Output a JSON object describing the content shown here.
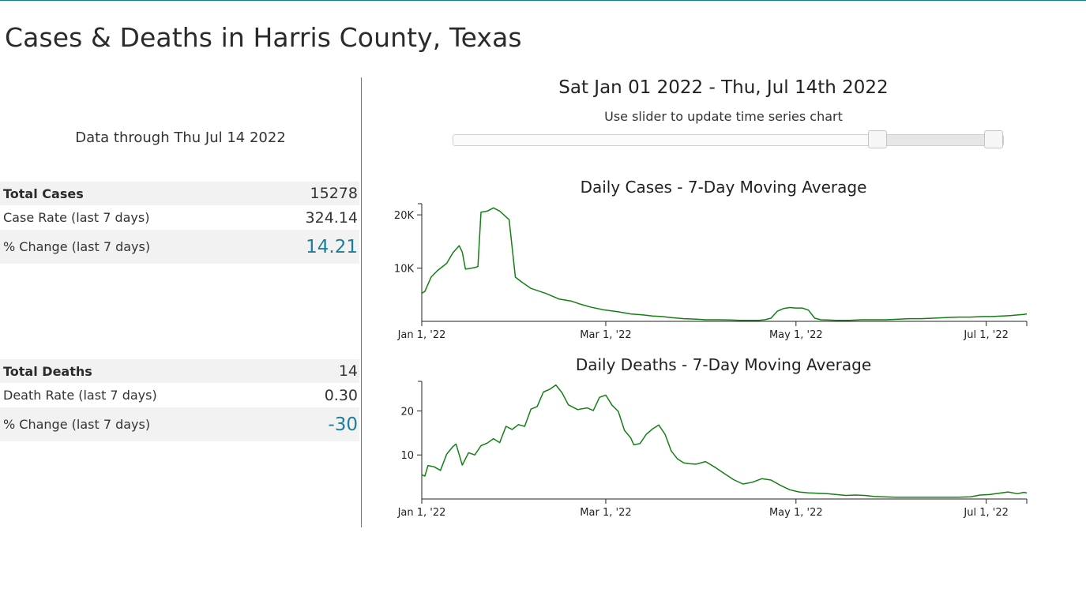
{
  "page": {
    "title": "Cases & Deaths in Harris County, Texas",
    "data_through": "Data through Thu Jul 14 2022"
  },
  "cases_stats": [
    {
      "label": "Total Cases",
      "value": "15278",
      "bold": true,
      "accent": false
    },
    {
      "label": "Case Rate (last 7 days)",
      "value": "324.14",
      "bold": false,
      "accent": false
    },
    {
      "label": "% Change (last 7 days)",
      "value": "14.21",
      "bold": false,
      "accent": true
    }
  ],
  "deaths_stats": [
    {
      "label": "Total Deaths",
      "value": "14",
      "bold": true,
      "accent": false
    },
    {
      "label": "Death Rate (last 7 days)",
      "value": "0.30",
      "bold": false,
      "accent": false
    },
    {
      "label": "% Change (last 7 days)",
      "value": "-30",
      "bold": false,
      "accent": true
    }
  ],
  "slider": {
    "range_title": "Sat Jan 01 2022 - Thu, Jul 14th 2022",
    "hint": "Use slider to update time series chart",
    "min_date": "2022-01-01",
    "max_date": "2022-07-14"
  },
  "colors": {
    "accent": "#1a7f9a",
    "line": "#138013",
    "divider": "#3b88b0"
  },
  "chart_data": [
    {
      "type": "line",
      "title": "Daily Cases - 7-Day Moving Average",
      "x_range": [
        "2022-01-01",
        "2022-07-14"
      ],
      "ylim": [
        0,
        21500
      ],
      "yticks": [
        {
          "value": 10000,
          "label": "10K"
        },
        {
          "value": 20000,
          "label": "20K"
        }
      ],
      "xticks": [
        {
          "date": "2022-01-01",
          "label": "Jan 1, '22"
        },
        {
          "date": "2022-03-01",
          "label": "Mar 1, '22"
        },
        {
          "date": "2022-05-01",
          "label": "May 1, '22"
        },
        {
          "date": "2022-07-01",
          "label": "Jul 1, '22"
        }
      ],
      "series": [
        {
          "points": [
            [
              "2022-01-01",
              5300
            ],
            [
              "2022-01-02",
              5600
            ],
            [
              "2022-01-04",
              8300
            ],
            [
              "2022-01-06",
              9500
            ],
            [
              "2022-01-09",
              10900
            ],
            [
              "2022-01-11",
              12900
            ],
            [
              "2022-01-13",
              14200
            ],
            [
              "2022-01-14",
              13000
            ],
            [
              "2022-01-15",
              9800
            ],
            [
              "2022-01-18",
              10100
            ],
            [
              "2022-01-19",
              10300
            ],
            [
              "2022-01-20",
              20500
            ],
            [
              "2022-01-22",
              20700
            ],
            [
              "2022-01-24",
              21300
            ],
            [
              "2022-01-26",
              20700
            ],
            [
              "2022-01-29",
              19100
            ],
            [
              "2022-01-31",
              8300
            ],
            [
              "2022-02-02",
              7400
            ],
            [
              "2022-02-05",
              6200
            ],
            [
              "2022-02-10",
              5200
            ],
            [
              "2022-02-14",
              4200
            ],
            [
              "2022-02-18",
              3800
            ],
            [
              "2022-02-21",
              3200
            ],
            [
              "2022-02-24",
              2700
            ],
            [
              "2022-02-28",
              2200
            ],
            [
              "2022-03-05",
              1800
            ],
            [
              "2022-03-09",
              1400
            ],
            [
              "2022-03-13",
              1200
            ],
            [
              "2022-03-16",
              1000
            ],
            [
              "2022-03-19",
              900
            ],
            [
              "2022-03-22",
              700
            ],
            [
              "2022-03-26",
              500
            ],
            [
              "2022-03-30",
              400
            ],
            [
              "2022-04-02",
              300
            ],
            [
              "2022-04-06",
              300
            ],
            [
              "2022-04-10",
              250
            ],
            [
              "2022-04-13",
              200
            ],
            [
              "2022-04-16",
              200
            ],
            [
              "2022-04-19",
              200
            ],
            [
              "2022-04-21",
              300
            ],
            [
              "2022-04-23",
              600
            ],
            [
              "2022-04-25",
              1900
            ],
            [
              "2022-04-27",
              2400
            ],
            [
              "2022-04-29",
              2600
            ],
            [
              "2022-05-01",
              2500
            ],
            [
              "2022-05-03",
              2500
            ],
            [
              "2022-05-05",
              2100
            ],
            [
              "2022-05-07",
              600
            ],
            [
              "2022-05-09",
              300
            ],
            [
              "2022-05-11",
              250
            ],
            [
              "2022-05-14",
              200
            ],
            [
              "2022-05-18",
              200
            ],
            [
              "2022-05-22",
              300
            ],
            [
              "2022-05-26",
              300
            ],
            [
              "2022-05-30",
              300
            ],
            [
              "2022-06-03",
              400
            ],
            [
              "2022-06-06",
              500
            ],
            [
              "2022-06-10",
              500
            ],
            [
              "2022-06-14",
              600
            ],
            [
              "2022-06-18",
              700
            ],
            [
              "2022-06-22",
              800
            ],
            [
              "2022-06-26",
              800
            ],
            [
              "2022-06-30",
              900
            ],
            [
              "2022-07-03",
              900
            ],
            [
              "2022-07-06",
              1000
            ],
            [
              "2022-07-09",
              1100
            ],
            [
              "2022-07-11",
              1200
            ],
            [
              "2022-07-13",
              1300
            ],
            [
              "2022-07-14",
              1400
            ]
          ]
        }
      ]
    },
    {
      "type": "line",
      "title": "Daily Deaths - 7-Day Moving Average",
      "x_range": [
        "2022-01-01",
        "2022-07-14"
      ],
      "ylim": [
        0,
        26
      ],
      "yticks": [
        {
          "value": 10,
          "label": "10"
        },
        {
          "value": 20,
          "label": "20"
        }
      ],
      "xticks": [
        {
          "date": "2022-01-01",
          "label": "Jan 1, '22"
        },
        {
          "date": "2022-03-01",
          "label": "Mar 1, '22"
        },
        {
          "date": "2022-05-01",
          "label": "May 1, '22"
        },
        {
          "date": "2022-07-01",
          "label": "Jul 1, '22"
        }
      ],
      "series": [
        {
          "points": [
            [
              "2022-01-01",
              5.5
            ],
            [
              "2022-01-02",
              5.2
            ],
            [
              "2022-01-03",
              7.6
            ],
            [
              "2022-01-05",
              7.3
            ],
            [
              "2022-01-07",
              6.5
            ],
            [
              "2022-01-09",
              10.2
            ],
            [
              "2022-01-11",
              11.9
            ],
            [
              "2022-01-12",
              12.5
            ],
            [
              "2022-01-14",
              7.7
            ],
            [
              "2022-01-16",
              10.5
            ],
            [
              "2022-01-18",
              10.0
            ],
            [
              "2022-01-20",
              12.1
            ],
            [
              "2022-01-22",
              12.7
            ],
            [
              "2022-01-24",
              13.7
            ],
            [
              "2022-01-26",
              12.8
            ],
            [
              "2022-01-28",
              16.5
            ],
            [
              "2022-01-30",
              15.8
            ],
            [
              "2022-02-01",
              16.9
            ],
            [
              "2022-02-03",
              16.5
            ],
            [
              "2022-02-05",
              20.4
            ],
            [
              "2022-02-07",
              21.0
            ],
            [
              "2022-02-09",
              24.3
            ],
            [
              "2022-02-11",
              24.9
            ],
            [
              "2022-02-13",
              25.9
            ],
            [
              "2022-02-15",
              24.1
            ],
            [
              "2022-02-17",
              21.4
            ],
            [
              "2022-02-20",
              20.3
            ],
            [
              "2022-02-23",
              20.7
            ],
            [
              "2022-02-25",
              20.1
            ],
            [
              "2022-02-27",
              23.1
            ],
            [
              "2022-03-01",
              23.6
            ],
            [
              "2022-03-03",
              21.3
            ],
            [
              "2022-03-05",
              19.9
            ],
            [
              "2022-03-07",
              15.6
            ],
            [
              "2022-03-09",
              13.9
            ],
            [
              "2022-03-10",
              12.3
            ],
            [
              "2022-03-12",
              12.6
            ],
            [
              "2022-03-14",
              14.7
            ],
            [
              "2022-03-16",
              15.9
            ],
            [
              "2022-03-18",
              16.8
            ],
            [
              "2022-03-20",
              14.7
            ],
            [
              "2022-03-22",
              10.9
            ],
            [
              "2022-03-24",
              9.1
            ],
            [
              "2022-03-26",
              8.2
            ],
            [
              "2022-03-28",
              8.0
            ],
            [
              "2022-03-30",
              7.9
            ],
            [
              "2022-04-02",
              8.5
            ],
            [
              "2022-04-05",
              7.2
            ],
            [
              "2022-04-08",
              5.8
            ],
            [
              "2022-04-11",
              4.4
            ],
            [
              "2022-04-14",
              3.4
            ],
            [
              "2022-04-17",
              3.8
            ],
            [
              "2022-04-20",
              4.6
            ],
            [
              "2022-04-23",
              4.3
            ],
            [
              "2022-04-26",
              3.1
            ],
            [
              "2022-04-29",
              2.1
            ],
            [
              "2022-05-02",
              1.6
            ],
            [
              "2022-05-05",
              1.4
            ],
            [
              "2022-05-08",
              1.3
            ],
            [
              "2022-05-11",
              1.2
            ],
            [
              "2022-05-14",
              1.0
            ],
            [
              "2022-05-17",
              0.8
            ],
            [
              "2022-05-20",
              0.9
            ],
            [
              "2022-05-23",
              0.8
            ],
            [
              "2022-05-26",
              0.6
            ],
            [
              "2022-05-29",
              0.5
            ],
            [
              "2022-06-02",
              0.4
            ],
            [
              "2022-06-06",
              0.4
            ],
            [
              "2022-06-10",
              0.4
            ],
            [
              "2022-06-14",
              0.4
            ],
            [
              "2022-06-18",
              0.4
            ],
            [
              "2022-06-22",
              0.4
            ],
            [
              "2022-06-26",
              0.5
            ],
            [
              "2022-06-29",
              0.9
            ],
            [
              "2022-07-02",
              1.0
            ],
            [
              "2022-07-05",
              1.3
            ],
            [
              "2022-07-08",
              1.6
            ],
            [
              "2022-07-11",
              1.2
            ],
            [
              "2022-07-13",
              1.5
            ],
            [
              "2022-07-14",
              1.4
            ]
          ]
        }
      ]
    }
  ]
}
